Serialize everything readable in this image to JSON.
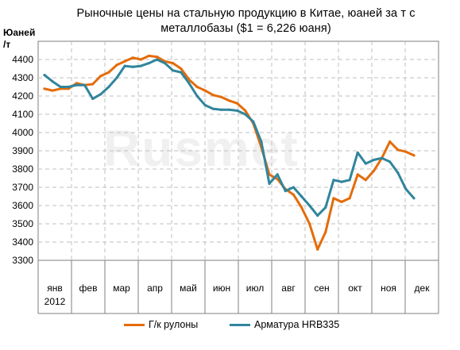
{
  "title_line1": "Рыночные цены на стальную продукцию в Китае, юаней за т с",
  "title_line2": "металлобазы ($1 = 6,226 юаня)",
  "ylabel_line1": "Юаней",
  "ylabel_line2": "/т",
  "year_label": "2012",
  "watermark": "Rusmet",
  "colors": {
    "coil": "#e46c0a",
    "rebar": "#31859c",
    "grid": "#bfbfbf",
    "axis": "#7f7f7f"
  },
  "chart_data": {
    "type": "line",
    "title": "Рыночные цены на стальную продукцию в Китае, юаней за т с металлобазы ($1 = 6,226 юаня)",
    "ylabel": "Юаней/т",
    "ylim": [
      3300,
      4500
    ],
    "yticks": [
      3300,
      3400,
      3500,
      3600,
      3700,
      3800,
      3900,
      4000,
      4100,
      4200,
      4300,
      4400
    ],
    "months": [
      "янв",
      "фев",
      "мар",
      "апр",
      "май",
      "июн",
      "июл",
      "авг",
      "сен",
      "окт",
      "ноя",
      "дек"
    ],
    "grid": true,
    "legend_position": "bottom",
    "series": [
      {
        "name": "Г/к рулоны",
        "color": "#e46c0a",
        "values": [
          4240,
          4230,
          4240,
          4240,
          4270,
          4260,
          4265,
          4310,
          4330,
          4370,
          4390,
          4410,
          4400,
          4420,
          4415,
          4390,
          4380,
          4350,
          4290,
          4250,
          4230,
          4205,
          4195,
          4175,
          4160,
          4120,
          4050,
          3920,
          3770,
          3745,
          3690,
          3660,
          3590,
          3500,
          3360,
          3455,
          3640,
          3620,
          3640,
          3770,
          3740,
          3790,
          3860,
          3950,
          3905,
          3895,
          3875
        ]
      },
      {
        "name": "Арматура HRB335",
        "color": "#31859c",
        "values": [
          4315,
          4280,
          4250,
          4250,
          4260,
          4260,
          4185,
          4210,
          4250,
          4300,
          4365,
          4360,
          4365,
          4380,
          4400,
          4380,
          4340,
          4330,
          4270,
          4200,
          4150,
          4130,
          4125,
          4125,
          4120,
          4100,
          4060,
          3950,
          3720,
          3770,
          3680,
          3700,
          3650,
          3600,
          3545,
          3590,
          3740,
          3730,
          3740,
          3890,
          3830,
          3850,
          3860,
          3840,
          3780,
          3690,
          3640
        ]
      }
    ]
  }
}
